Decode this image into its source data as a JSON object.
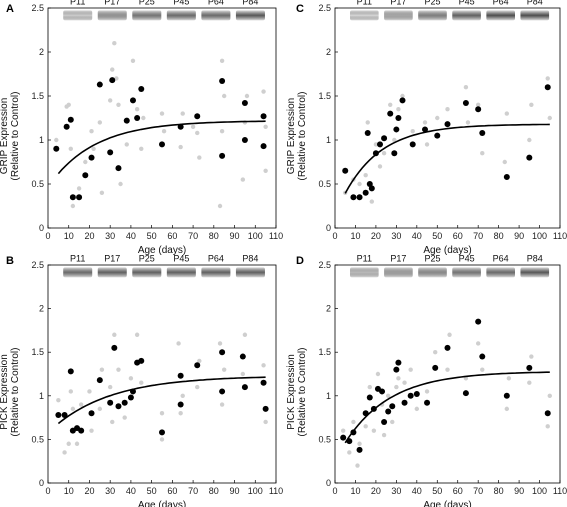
{
  "colors": {
    "mean_point": "#000000",
    "individual_point": "#cfcfcf",
    "fit_line": "#000000",
    "blot_band": "#3a3a3a"
  },
  "chart_data": [
    {
      "type": "scatter",
      "panel": "A",
      "xlabel": "Age (days)",
      "ylabel_line1": "GRIP Expression",
      "ylabel_line2": "(Relative to Control)",
      "xlim": [
        0,
        110
      ],
      "ylim": [
        0,
        2.5
      ],
      "xticks": [
        "0",
        "10",
        "20",
        "30",
        "40",
        "50",
        "60",
        "70",
        "80",
        "90",
        "100",
        "110"
      ],
      "yticks": [
        "0",
        "0.5",
        "1",
        "1.5",
        "2",
        "2.5"
      ],
      "blot_labels": [
        "P11",
        "P17",
        "P25",
        "P45",
        "P64",
        "P84"
      ],
      "blot_intensity": [
        0.25,
        0.55,
        0.7,
        0.75,
        0.75,
        0.85
      ],
      "mean_points": [
        [
          4,
          0.9
        ],
        [
          9,
          1.15
        ],
        [
          11,
          1.23
        ],
        [
          12,
          0.35
        ],
        [
          15,
          0.35
        ],
        [
          18,
          0.6
        ],
        [
          21,
          0.8
        ],
        [
          25,
          1.63
        ],
        [
          30,
          0.86
        ],
        [
          31,
          1.68
        ],
        [
          34,
          0.68
        ],
        [
          38,
          1.22
        ],
        [
          41,
          1.45
        ],
        [
          43,
          1.25
        ],
        [
          45,
          1.58
        ],
        [
          55,
          0.95
        ],
        [
          64,
          1.15
        ],
        [
          72,
          1.27
        ],
        [
          84,
          1.67
        ],
        [
          84,
          0.82
        ],
        [
          95,
          1.42
        ],
        [
          95,
          1.0
        ],
        [
          104,
          1.27
        ],
        [
          104,
          0.93
        ]
      ],
      "individual_points": [
        [
          4,
          1.0
        ],
        [
          9,
          1.38
        ],
        [
          10,
          1.4
        ],
        [
          11,
          0.9
        ],
        [
          12,
          0.25
        ],
        [
          15,
          0.45
        ],
        [
          18,
          0.75
        ],
        [
          21,
          1.1
        ],
        [
          22,
          0.9
        ],
        [
          25,
          1.2
        ],
        [
          26,
          0.4
        ],
        [
          30,
          1.45
        ],
        [
          31,
          1.8
        ],
        [
          32,
          2.1
        ],
        [
          33,
          1.7
        ],
        [
          34,
          1.4
        ],
        [
          35,
          0.5
        ],
        [
          38,
          0.95
        ],
        [
          41,
          1.9
        ],
        [
          43,
          1.35
        ],
        [
          45,
          0.9
        ],
        [
          46,
          1.25
        ],
        [
          55,
          1.3
        ],
        [
          56,
          1.1
        ],
        [
          64,
          0.92
        ],
        [
          65,
          1.3
        ],
        [
          70,
          1.15
        ],
        [
          72,
          1.08
        ],
        [
          73,
          0.8
        ],
        [
          83,
          0.25
        ],
        [
          84,
          1.1
        ],
        [
          84,
          1.9
        ],
        [
          85,
          1.5
        ],
        [
          94,
          0.55
        ],
        [
          95,
          1.2
        ],
        [
          96,
          1.5
        ],
        [
          104,
          1.55
        ],
        [
          105,
          0.65
        ],
        [
          105,
          1.15
        ]
      ],
      "fit": {
        "model": "exponential_rise",
        "plateau": 1.22,
        "y0": 0.5,
        "k": 0.045,
        "x_start": 5,
        "x_end": 105
      }
    },
    {
      "type": "scatter",
      "panel": "B",
      "xlabel": "Age (days)",
      "ylabel_line1": "PICK Expression",
      "ylabel_line2": "(Relative to Control)",
      "xlim": [
        0,
        110
      ],
      "ylim": [
        0,
        2.5
      ],
      "xticks": [
        "0",
        "10",
        "20",
        "30",
        "40",
        "50",
        "60",
        "70",
        "80",
        "90",
        "100",
        "110"
      ],
      "yticks": [
        "0",
        "0.5",
        "1",
        "1.5",
        "2",
        "2.5"
      ],
      "blot_labels": [
        "P11",
        "P17",
        "P25",
        "P45",
        "P64",
        "P84"
      ],
      "blot_intensity": [
        0.75,
        0.8,
        0.8,
        0.8,
        0.8,
        0.8
      ],
      "mean_points": [
        [
          5,
          0.78
        ],
        [
          8,
          0.78
        ],
        [
          11,
          1.28
        ],
        [
          12,
          0.6
        ],
        [
          14,
          0.63
        ],
        [
          16,
          0.6
        ],
        [
          21,
          0.8
        ],
        [
          25,
          1.18
        ],
        [
          30,
          0.92
        ],
        [
          32,
          1.55
        ],
        [
          34,
          0.88
        ],
        [
          37,
          0.92
        ],
        [
          40,
          0.98
        ],
        [
          41,
          1.05
        ],
        [
          43,
          1.38
        ],
        [
          45,
          1.4
        ],
        [
          55,
          0.58
        ],
        [
          64,
          0.9
        ],
        [
          64,
          1.23
        ],
        [
          72,
          1.35
        ],
        [
          84,
          1.5
        ],
        [
          84,
          1.05
        ],
        [
          94,
          1.45
        ],
        [
          95,
          1.1
        ],
        [
          104,
          1.15
        ],
        [
          105,
          0.85
        ]
      ],
      "individual_points": [
        [
          5,
          0.95
        ],
        [
          8,
          0.35
        ],
        [
          10,
          0.45
        ],
        [
          11,
          1.05
        ],
        [
          12,
          0.85
        ],
        [
          14,
          0.45
        ],
        [
          16,
          0.9
        ],
        [
          20,
          1.05
        ],
        [
          21,
          0.6
        ],
        [
          25,
          0.85
        ],
        [
          26,
          1.3
        ],
        [
          30,
          1.1
        ],
        [
          31,
          0.7
        ],
        [
          32,
          1.7
        ],
        [
          34,
          1.3
        ],
        [
          37,
          0.75
        ],
        [
          40,
          1.2
        ],
        [
          43,
          1.7
        ],
        [
          45,
          1.15
        ],
        [
          55,
          0.5
        ],
        [
          55,
          0.8
        ],
        [
          63,
          1.6
        ],
        [
          64,
          0.8
        ],
        [
          65,
          1.0
        ],
        [
          72,
          1.1
        ],
        [
          73,
          1.4
        ],
        [
          83,
          1.6
        ],
        [
          84,
          0.9
        ],
        [
          85,
          1.3
        ],
        [
          94,
          1.25
        ],
        [
          95,
          1.7
        ],
        [
          104,
          1.35
        ],
        [
          105,
          0.7
        ]
      ],
      "fit": {
        "model": "exponential_rise",
        "plateau": 1.23,
        "y0": 0.6,
        "k": 0.035,
        "x_start": 5,
        "x_end": 105
      }
    },
    {
      "type": "scatter",
      "panel": "C",
      "xlabel": "Age (days)",
      "ylabel_line1": "GRIP Expression",
      "ylabel_line2": "(Relative to Control)",
      "xlim": [
        0,
        110
      ],
      "ylim": [
        0,
        2.5
      ],
      "xticks": [
        "0",
        "10",
        "20",
        "30",
        "40",
        "50",
        "60",
        "70",
        "80",
        "90",
        "100",
        "110"
      ],
      "yticks": [
        "0",
        "0.5",
        "1",
        "1.5",
        "2",
        "2.5"
      ],
      "blot_labels": [
        "P11",
        "P17",
        "P25",
        "P45",
        "P64",
        "P84"
      ],
      "blot_intensity": [
        0.2,
        0.45,
        0.65,
        0.8,
        0.9,
        0.9
      ],
      "mean_points": [
        [
          5,
          0.65
        ],
        [
          9,
          0.35
        ],
        [
          12,
          0.35
        ],
        [
          15,
          0.4
        ],
        [
          16,
          1.08
        ],
        [
          17,
          0.5
        ],
        [
          18,
          0.45
        ],
        [
          20,
          0.85
        ],
        [
          22,
          0.95
        ],
        [
          24,
          1.02
        ],
        [
          27,
          1.3
        ],
        [
          29,
          0.85
        ],
        [
          30,
          1.12
        ],
        [
          31,
          1.25
        ],
        [
          33,
          1.45
        ],
        [
          38,
          0.95
        ],
        [
          44,
          1.12
        ],
        [
          50,
          1.05
        ],
        [
          55,
          1.18
        ],
        [
          64,
          1.42
        ],
        [
          70,
          1.35
        ],
        [
          72,
          1.08
        ],
        [
          84,
          0.58
        ],
        [
          95,
          0.8
        ],
        [
          104,
          1.6
        ]
      ],
      "individual_points": [
        [
          5,
          0.4
        ],
        [
          9,
          0.55
        ],
        [
          12,
          0.5
        ],
        [
          15,
          0.6
        ],
        [
          16,
          1.2
        ],
        [
          18,
          0.3
        ],
        [
          20,
          0.95
        ],
        [
          22,
          0.7
        ],
        [
          24,
          0.85
        ],
        [
          27,
          1.4
        ],
        [
          29,
          1.0
        ],
        [
          31,
          1.35
        ],
        [
          33,
          1.5
        ],
        [
          38,
          1.1
        ],
        [
          44,
          1.2
        ],
        [
          45,
          0.95
        ],
        [
          50,
          1.25
        ],
        [
          55,
          1.35
        ],
        [
          64,
          1.6
        ],
        [
          65,
          1.2
        ],
        [
          70,
          1.4
        ],
        [
          72,
          0.85
        ],
        [
          83,
          0.75
        ],
        [
          84,
          1.3
        ],
        [
          95,
          1.0
        ],
        [
          96,
          1.4
        ],
        [
          104,
          1.7
        ],
        [
          105,
          1.25
        ]
      ],
      "fit": {
        "model": "exponential_rise",
        "plateau": 1.18,
        "y0": 0.2,
        "k": 0.055,
        "x_start": 5,
        "x_end": 105
      }
    },
    {
      "type": "scatter",
      "panel": "D",
      "xlabel": "Age (days)",
      "ylabel_line1": "PICK Expression",
      "ylabel_line2": "(Relative to Control)",
      "xlim": [
        0,
        110
      ],
      "ylim": [
        0,
        2.5
      ],
      "xticks": [
        "0",
        "10",
        "20",
        "30",
        "40",
        "50",
        "60",
        "70",
        "80",
        "90",
        "100",
        "110"
      ],
      "yticks": [
        "0",
        "0.5",
        "1",
        "1.5",
        "2",
        "2.5"
      ],
      "blot_labels": [
        "P11",
        "P17",
        "P25",
        "P45",
        "P64",
        "P84"
      ],
      "blot_intensity": [
        0.35,
        0.5,
        0.6,
        0.7,
        0.75,
        0.85
      ],
      "mean_points": [
        [
          4,
          0.52
        ],
        [
          7,
          0.48
        ],
        [
          9,
          0.58
        ],
        [
          12,
          0.38
        ],
        [
          15,
          0.8
        ],
        [
          17,
          0.98
        ],
        [
          19,
          0.85
        ],
        [
          21,
          1.08
        ],
        [
          23,
          1.05
        ],
        [
          24,
          0.7
        ],
        [
          26,
          0.82
        ],
        [
          28,
          0.88
        ],
        [
          30,
          1.3
        ],
        [
          31,
          1.38
        ],
        [
          34,
          0.92
        ],
        [
          37,
          1.0
        ],
        [
          40,
          1.02
        ],
        [
          45,
          0.92
        ],
        [
          49,
          1.32
        ],
        [
          55,
          1.55
        ],
        [
          64,
          1.03
        ],
        [
          70,
          1.85
        ],
        [
          72,
          1.45
        ],
        [
          84,
          1.0
        ],
        [
          95,
          1.32
        ],
        [
          104,
          0.8
        ]
      ],
      "individual_points": [
        [
          4,
          0.6
        ],
        [
          7,
          0.35
        ],
        [
          9,
          0.7
        ],
        [
          11,
          0.2
        ],
        [
          12,
          0.45
        ],
        [
          15,
          0.65
        ],
        [
          17,
          1.1
        ],
        [
          19,
          0.6
        ],
        [
          21,
          1.25
        ],
        [
          23,
          0.9
        ],
        [
          24,
          0.55
        ],
        [
          26,
          1.0
        ],
        [
          28,
          0.7
        ],
        [
          30,
          1.1
        ],
        [
          31,
          1.2
        ],
        [
          34,
          1.15
        ],
        [
          37,
          1.3
        ],
        [
          40,
          0.85
        ],
        [
          45,
          1.05
        ],
        [
          49,
          1.5
        ],
        [
          55,
          1.3
        ],
        [
          56,
          1.7
        ],
        [
          64,
          1.2
        ],
        [
          70,
          1.6
        ],
        [
          72,
          1.3
        ],
        [
          84,
          0.85
        ],
        [
          85,
          1.2
        ],
        [
          95,
          1.15
        ],
        [
          96,
          1.45
        ],
        [
          104,
          0.65
        ],
        [
          105,
          1.0
        ]
      ],
      "fit": {
        "model": "exponential_rise",
        "plateau": 1.28,
        "y0": 0.3,
        "k": 0.045,
        "x_start": 5,
        "x_end": 105
      }
    }
  ]
}
